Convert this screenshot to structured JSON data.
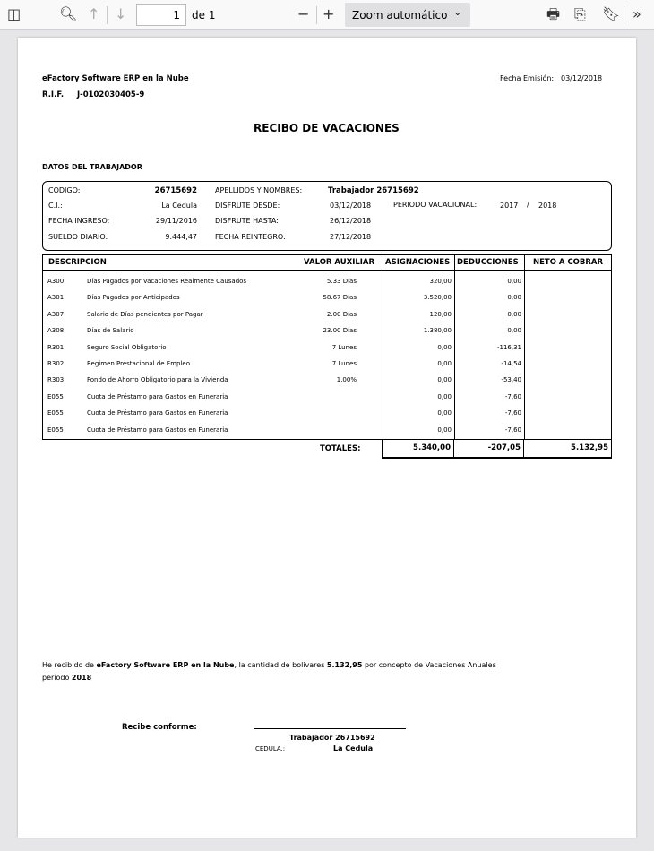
{
  "toolbar": {
    "page": "1",
    "page_total": "de 1",
    "zoom": "Zoom automático"
  },
  "doc": {
    "company": "eFactory Software ERP en la Nube",
    "rif_label": "R.I.F.",
    "rif": "J-0102030405-9",
    "fecha_label": "Fecha Emisión:",
    "fecha": "03/12/2018",
    "title": "RECIBO DE VACACIONES",
    "section": "DATOS DEL TRABAJADOR",
    "info": {
      "codigo_l": "CODIGO:",
      "codigo": "26715692",
      "ci_l": "C.I.:",
      "ci": "La Cedula",
      "ingreso_l": "FECHA INGRESO:",
      "ingreso": "29/11/2016",
      "sueldo_l": "SUELDO DIARIO:",
      "sueldo": "9.444,47",
      "nombres_l": "APELLIDOS Y NOMBRES:",
      "nombres": "Trabajador 26715692",
      "desde_l": "DISFRUTE DESDE:",
      "desde": "03/12/2018",
      "hasta_l": "DISFRUTE HASTA:",
      "hasta": "26/12/2018",
      "reintegro_l": "FECHA REINTEGRO:",
      "reintegro": "27/12/2018",
      "periodo_l": "PERIODO VACACIONAL:",
      "periodo_a": "2017",
      "periodo_sep": "/",
      "periodo_b": "2018"
    },
    "columns": [
      "DESCRIPCION",
      "VALOR AUXILIAR",
      "ASIGNACIONES",
      "DEDUCCIONES",
      "NETO A COBRAR"
    ],
    "rows": [
      {
        "code": "A300",
        "desc": "Días Pagados por Vacaciones Realmente Causados",
        "aux": "5.33 Días",
        "asig": "320,00",
        "ded": "0,00"
      },
      {
        "code": "A301",
        "desc": "Días Pagados por Anticipados",
        "aux": "58.67 Días",
        "asig": "3.520,00",
        "ded": "0,00"
      },
      {
        "code": "A307",
        "desc": "Salario de Días pendientes por Pagar",
        "aux": "2.00 Días",
        "asig": "120,00",
        "ded": "0,00"
      },
      {
        "code": "A308",
        "desc": "Días de Salario",
        "aux": "23.00 Días",
        "asig": "1.380,00",
        "ded": "0,00"
      },
      {
        "code": "R301",
        "desc": "Seguro Social Obligatorio",
        "aux": "7 Lunes",
        "asig": "0,00",
        "ded": "-116,31"
      },
      {
        "code": "R302",
        "desc": "Regimen Prestacional de Empleo",
        "aux": "7 Lunes",
        "asig": "0,00",
        "ded": "-14,54"
      },
      {
        "code": "R303",
        "desc": "Fondo de Ahorro Obligatorio para la Vivienda",
        "aux": "1.00%",
        "asig": "0,00",
        "ded": "-53,40"
      },
      {
        "code": "E055",
        "desc": "Cuota de Préstamo para Gastos en Funeraria",
        "aux": "",
        "asig": "0,00",
        "ded": "-7,60"
      },
      {
        "code": "E055",
        "desc": "Cuota de Préstamo para Gastos en Funeraria",
        "aux": "",
        "asig": "0,00",
        "ded": "-7,60"
      },
      {
        "code": "E055",
        "desc": "Cuota de Préstamo para Gastos en Funeraria",
        "aux": "",
        "asig": "0,00",
        "ded": "-7,60"
      }
    ],
    "totales": {
      "label": "TOTALES:",
      "asig": "5.340,00",
      "ded": "-207,05",
      "neto": "5.132,95"
    },
    "receipt": {
      "p1": "He recibido de ",
      "company": "eFactory Software ERP en la Nube",
      "p2": ", la cantidad de bolivares ",
      "amount": "5.132,95",
      "p3": " por concepto de Vacaciones Anuales",
      "p4": "período ",
      "year": "2018"
    },
    "sign": {
      "label": "Recibe conforme:",
      "name": "Trabajador 26715692",
      "cedula_l": "CEDULA.:",
      "cedula": "La Cedula"
    }
  }
}
